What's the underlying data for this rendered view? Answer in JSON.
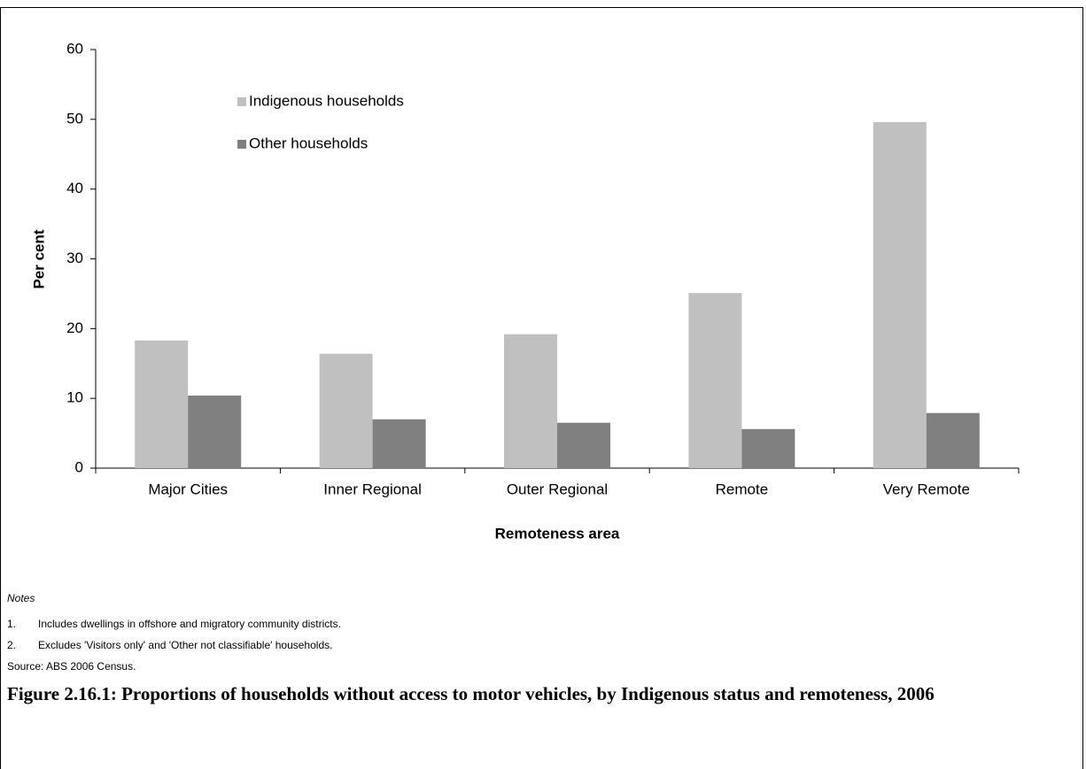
{
  "chart_data": {
    "type": "bar",
    "title": "Figure 2.16.1: Proportions of households without access to motor vehicles, by Indigenous status and remoteness, 2006",
    "x_label": "Remoteness area",
    "y_label": "Per cent",
    "categories": [
      "Major Cities",
      "Inner Regional",
      "Outer Regional",
      "Remote",
      "Very Remote"
    ],
    "series": [
      {
        "name": "Indigenous households",
        "color": "#c0c0c0",
        "values": [
          18.3,
          16.4,
          19.2,
          25.1,
          49.6
        ]
      },
      {
        "name": "Other households",
        "color": "#808080",
        "values": [
          10.4,
          7.0,
          6.5,
          5.6,
          7.9
        ]
      }
    ],
    "ylim": [
      0,
      60
    ],
    "yticks": [
      0,
      10,
      20,
      30,
      40,
      50,
      60
    ],
    "grid": false,
    "legend": "top-left"
  },
  "notes": {
    "heading": "Notes",
    "items": [
      {
        "number": "1.",
        "text": "Includes dwellings in offshore and migratory community districts."
      },
      {
        "number": "2.",
        "text": "Excludes 'Visitors only' and 'Other not classifiable' households."
      }
    ]
  },
  "source": "Source: ABS 2006 Census."
}
